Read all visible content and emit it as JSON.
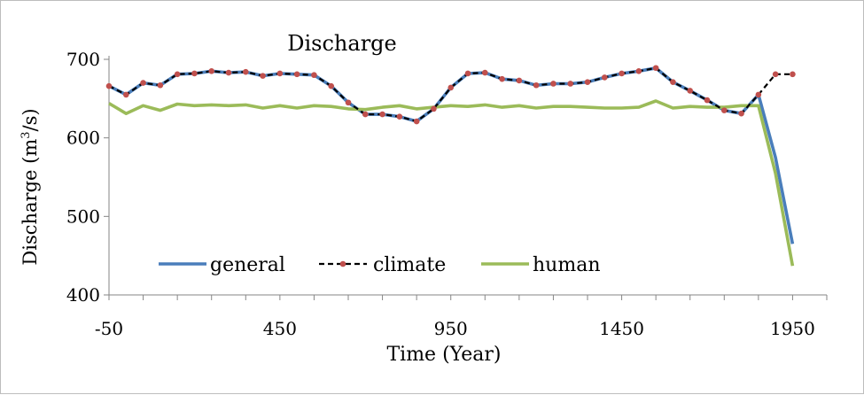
{
  "chart_data": {
    "type": "line",
    "title": "Discharge",
    "xlabel": "Time (Year)",
    "ylabel_main": "Discharge (m",
    "ylabel_sup": "3",
    "ylabel_tail": "/s)",
    "xlim": [
      -50,
      2050
    ],
    "ylim": [
      400,
      700
    ],
    "xticks": [
      -50,
      450,
      950,
      1450,
      1950
    ],
    "yticks": [
      400,
      500,
      600,
      700
    ],
    "legend_position": "bottom-left (inside plot)",
    "x": [
      -50,
      0,
      50,
      100,
      150,
      200,
      250,
      300,
      350,
      400,
      450,
      500,
      550,
      600,
      650,
      700,
      750,
      800,
      850,
      900,
      950,
      1000,
      1050,
      1100,
      1150,
      1200,
      1250,
      1300,
      1350,
      1400,
      1450,
      1500,
      1550,
      1600,
      1650,
      1700,
      1750,
      1800,
      1850,
      1900,
      1950
    ],
    "series": [
      {
        "name": "general",
        "style": "solid",
        "color": "#4a7ebb",
        "values": [
          666,
          655,
          670,
          667,
          681,
          682,
          685,
          683,
          684,
          679,
          682,
          681,
          680,
          666,
          645,
          630,
          630,
          627,
          621,
          637,
          664,
          682,
          683,
          675,
          673,
          667,
          669,
          669,
          671,
          677,
          682,
          685,
          689,
          671,
          660,
          648,
          635,
          631,
          655,
          575,
          465
        ]
      },
      {
        "name": "climate",
        "style": "dashed-dots",
        "color": "#000000",
        "marker_color": "#c0504d",
        "values": [
          666,
          655,
          670,
          667,
          681,
          682,
          685,
          683,
          684,
          679,
          682,
          681,
          680,
          666,
          645,
          630,
          630,
          627,
          621,
          637,
          664,
          682,
          683,
          675,
          673,
          667,
          669,
          669,
          671,
          677,
          682,
          685,
          689,
          671,
          660,
          648,
          635,
          631,
          655,
          681,
          681
        ]
      },
      {
        "name": "human",
        "style": "solid",
        "color": "#9bbb59",
        "values": [
          644,
          631,
          641,
          635,
          643,
          641,
          642,
          641,
          642,
          638,
          641,
          638,
          641,
          640,
          637,
          636,
          639,
          641,
          637,
          639,
          641,
          640,
          642,
          639,
          641,
          638,
          640,
          640,
          639,
          638,
          638,
          639,
          647,
          638,
          640,
          639,
          639,
          641,
          641,
          555,
          437
        ]
      }
    ]
  }
}
